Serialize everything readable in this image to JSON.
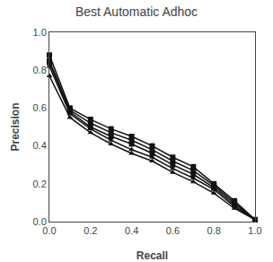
{
  "chart_data": {
    "type": "line",
    "title": "Best Automatic Adhoc",
    "x_label": "Recall",
    "y_label": "Precision",
    "x": [
      0.0,
      0.1,
      0.2,
      0.3,
      0.4,
      0.5,
      0.6,
      0.7,
      0.8,
      0.9,
      1.0
    ],
    "series": [
      {
        "color": "#111111",
        "marker": "square",
        "values": [
          0.88,
          0.6,
          0.54,
          0.49,
          0.45,
          0.4,
          0.34,
          0.29,
          0.2,
          0.11,
          0.01
        ]
      },
      {
        "color": "#111111",
        "marker": "square",
        "values": [
          0.85,
          0.59,
          0.52,
          0.47,
          0.43,
          0.38,
          0.32,
          0.27,
          0.19,
          0.1,
          0.01
        ]
      },
      {
        "color": "#111111",
        "marker": "square",
        "values": [
          0.84,
          0.58,
          0.5,
          0.45,
          0.41,
          0.36,
          0.3,
          0.25,
          0.18,
          0.09,
          0.01
        ]
      },
      {
        "color": "#111111",
        "marker": "triangle",
        "values": [
          0.82,
          0.57,
          0.49,
          0.43,
          0.38,
          0.34,
          0.28,
          0.23,
          0.17,
          0.08,
          0.01
        ]
      },
      {
        "color": "#111111",
        "marker": "triangle",
        "values": [
          0.77,
          0.55,
          0.47,
          0.41,
          0.36,
          0.32,
          0.26,
          0.21,
          0.15,
          0.07,
          0.01
        ]
      }
    ],
    "xlim": [
      0.0,
      1.0
    ],
    "ylim": [
      0.0,
      1.0
    ],
    "xticks": [
      {
        "value": 0.0,
        "label": "0.0"
      },
      0.2,
      0.4,
      0.6,
      0.8,
      {
        "value": 1.0,
        "label": "1.0"
      }
    ],
    "yticks": [
      {
        "value": 0.0,
        "label": "0.0"
      },
      0.2,
      0.4,
      0.6,
      0.8,
      {
        "value": 1.0,
        "label": "1.0"
      }
    ],
    "grid": false
  }
}
